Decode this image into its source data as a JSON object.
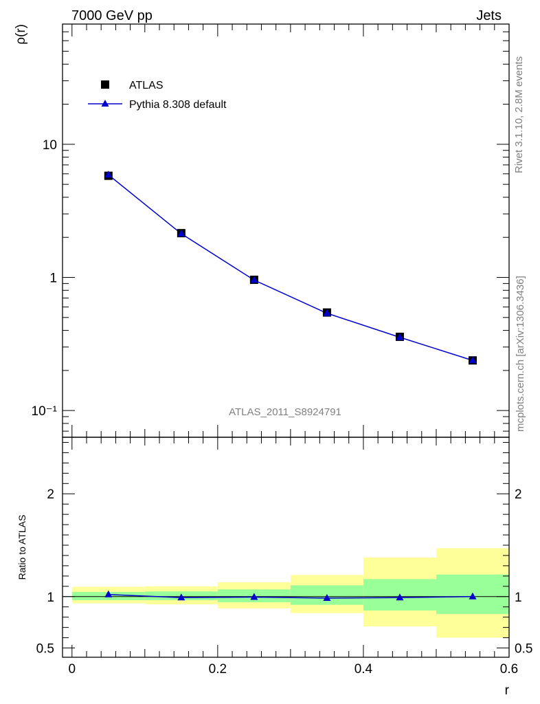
{
  "header": {
    "left_title": "7000 GeV pp",
    "right_title": "Jets"
  },
  "side_text": {
    "rivet": "Rivet 3.1.10,  2.8M events",
    "mcplots": "mcplots.cern.ch [arXiv:1306.3436]"
  },
  "watermark": "ATLAS_2011_S8924791",
  "colors": {
    "data_marker": "#000000",
    "mc_line": "#0000cc",
    "mc_marker": "#0000cc",
    "band_inner": "#99ff99",
    "band_outer": "#ffff99"
  },
  "chart_data": [
    {
      "type": "scatter",
      "panel": "main",
      "ylabel": "ρ(r)",
      "yscale": "log",
      "ylim": [
        0.063,
        80
      ],
      "xlim": [
        -0.013,
        0.6
      ],
      "y_tick_labels": [
        "10⁻¹",
        "1",
        "10"
      ],
      "legend_position": "top-left",
      "series": [
        {
          "name": "ATLAS",
          "marker": "square",
          "x": [
            0.05,
            0.15,
            0.25,
            0.35,
            0.45,
            0.55
          ],
          "y": [
            5.8,
            2.15,
            0.96,
            0.545,
            0.358,
            0.238
          ]
        },
        {
          "name": "Pythia 8.308 default",
          "marker": "triangle",
          "x": [
            0.05,
            0.15,
            0.25,
            0.35,
            0.45,
            0.55
          ],
          "y": [
            5.9,
            2.13,
            0.955,
            0.538,
            0.355,
            0.238
          ]
        }
      ]
    },
    {
      "type": "line",
      "panel": "ratio",
      "ylabel": "Ratio to ATLAS",
      "xlabel": "r",
      "ylim": [
        0.41,
        2.55
      ],
      "xlim": [
        -0.013,
        0.6
      ],
      "x_tick_labels": [
        "0",
        "0.2",
        "0.4",
        "0.6"
      ],
      "y_tick_labels": [
        "0.5",
        "1",
        "2"
      ],
      "bins": [
        [
          0.0,
          0.1
        ],
        [
          0.1,
          0.2
        ],
        [
          0.2,
          0.3
        ],
        [
          0.3,
          0.4
        ],
        [
          0.4,
          0.5
        ],
        [
          0.5,
          0.6
        ]
      ],
      "band_inner": [
        [
          0.965,
          1.045
        ],
        [
          0.965,
          1.05
        ],
        [
          0.945,
          1.07
        ],
        [
          0.92,
          1.11
        ],
        [
          0.865,
          1.17
        ],
        [
          0.83,
          1.215
        ]
      ],
      "band_outer": [
        [
          0.935,
          1.095
        ],
        [
          0.925,
          1.1
        ],
        [
          0.885,
          1.14
        ],
        [
          0.84,
          1.21
        ],
        [
          0.71,
          1.38
        ],
        [
          0.6,
          1.47
        ]
      ],
      "series": [
        {
          "name": "Pythia 8.308 default",
          "x": [
            0.05,
            0.15,
            0.25,
            0.35,
            0.45,
            0.55
          ],
          "y": [
            1.02,
            0.99,
            0.995,
            0.985,
            0.99,
            1.0
          ]
        }
      ]
    }
  ]
}
